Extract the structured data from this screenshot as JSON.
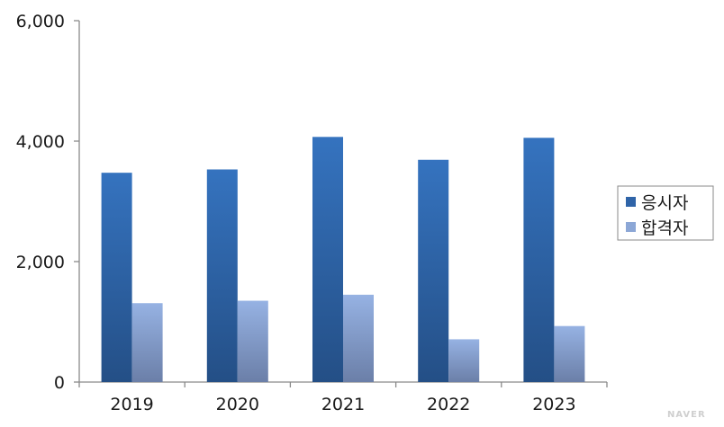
{
  "chart_data": {
    "type": "bar",
    "categories": [
      "2019",
      "2020",
      "2021",
      "2022",
      "2023"
    ],
    "series": [
      {
        "name": "응시자",
        "values": [
          3475,
          3530,
          4070,
          3690,
          4055
        ],
        "color": "#2f64a8"
      },
      {
        "name": "합격자",
        "values": [
          1310,
          1350,
          1450,
          710,
          930
        ],
        "color": "#8ca7d6"
      }
    ],
    "y_ticks": [
      "0",
      "2,000",
      "4,000",
      "6,000"
    ],
    "y_tick_values": [
      0,
      2000,
      4000,
      6000
    ],
    "ylim": [
      0,
      6000
    ],
    "grid": false,
    "legend_position": "right"
  },
  "watermark": "NAVER"
}
